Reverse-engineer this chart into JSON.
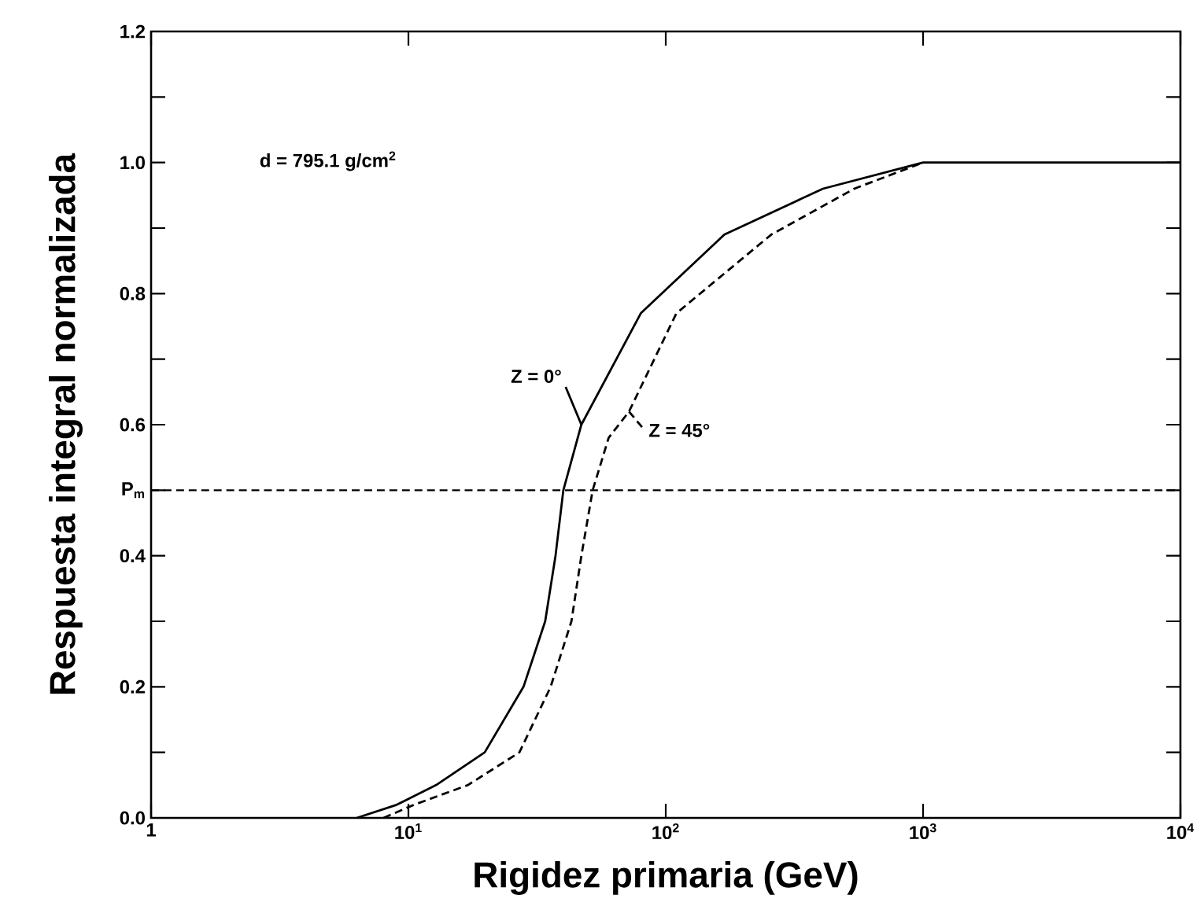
{
  "chart_data": {
    "type": "line",
    "xlabel": "Rigidez primaria (GeV)",
    "ylabel": "Respuesta integral normalizada",
    "annotations": [
      "d = 795.1 g/cm$^{2}$"
    ],
    "log": "x",
    "xlim": [
      1,
      10000
    ],
    "xticks": [
      1,
      {
        "value": 10,
        "label": "10$^{1}$"
      },
      {
        "value": 100,
        "label": "10$^{2}$"
      },
      {
        "value": 1000,
        "label": "10$^{3}$"
      },
      {
        "value": 10000,
        "label": "10$^{4}$"
      }
    ],
    "ylim": [
      0,
      1.2
    ],
    "yticks": [
      {
        "value": 0,
        "label": "0.0"
      },
      0.2,
      0.4,
      0.6,
      0.8,
      {
        "value": 1.0,
        "label": "1.0"
      },
      1.2
    ],
    "ref_lines": [
      {
        "axis": "y",
        "value": 0.5,
        "label": "P$_{m}$",
        "line_style": "dashed",
        "color": "#000000"
      }
    ],
    "series": [
      {
        "name": "Z = 0°",
        "color": "#000000",
        "line_style": "solid",
        "x": [
          6.3,
          9,
          12.8,
          19.8,
          28,
          34,
          37.3,
          40,
          47,
          80,
          169,
          408,
          1000,
          10000
        ],
        "values": [
          0,
          0.02,
          0.05,
          0.1,
          0.2,
          0.3,
          0.4,
          0.5,
          0.6,
          0.77,
          0.89,
          0.96,
          1.0,
          1.0
        ]
      },
      {
        "name": "Z = 45°",
        "color": "#000000",
        "line_style": "dashed",
        "x": [
          8,
          10.5,
          17,
          27,
          35.7,
          43,
          47,
          52,
          60,
          72,
          110,
          257,
          540,
          1000
        ],
        "values": [
          0,
          0.02,
          0.05,
          0.1,
          0.2,
          0.3,
          0.4,
          0.5,
          0.58,
          0.62,
          0.77,
          0.89,
          0.96,
          1.0
        ]
      }
    ]
  }
}
